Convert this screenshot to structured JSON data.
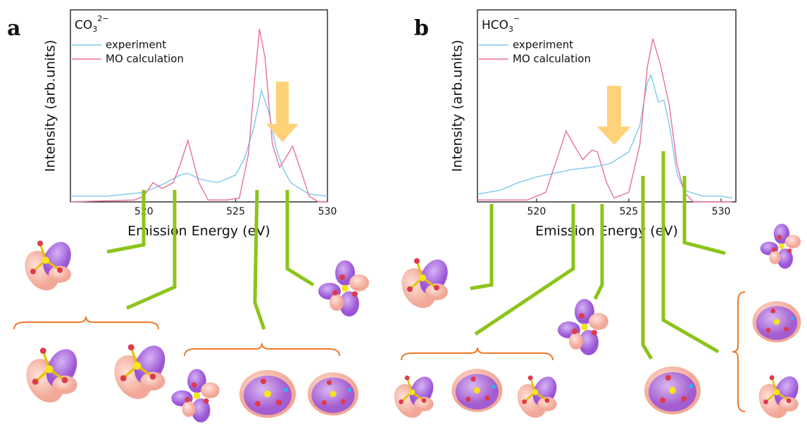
{
  "chart_data": [
    {
      "type": "line",
      "panel": "a",
      "formula": {
        "base": "CO",
        "sub": "3",
        "sup": "2−"
      },
      "x_label": "Emission Energy (eV)",
      "y_label": "Intensity (arb.units)",
      "xlim": [
        516,
        530
      ],
      "ylim": [
        0,
        1
      ],
      "xticks": [
        520,
        525,
        530
      ],
      "grid": false,
      "legend": "upper left",
      "series": [
        {
          "name": "experiment",
          "color": "#7ec8ec",
          "x": [
            516,
            518,
            520,
            521,
            522,
            522.4,
            523,
            524,
            525,
            525.5,
            526,
            526.4,
            526.8,
            527.2,
            527.6,
            528,
            529,
            530
          ],
          "values": [
            0.03,
            0.03,
            0.05,
            0.09,
            0.14,
            0.15,
            0.12,
            0.1,
            0.14,
            0.23,
            0.39,
            0.58,
            0.47,
            0.28,
            0.17,
            0.1,
            0.04,
            0.03
          ]
        },
        {
          "name": "MO calculation",
          "color": "#e8709a",
          "x": [
            516,
            519.5,
            520,
            520.5,
            521,
            521.6,
            522,
            522.4,
            523,
            523.5,
            524.5,
            525.2,
            525.7,
            526,
            526.3,
            526.6,
            527,
            527.4,
            527.8,
            528.1,
            528.6,
            529,
            529.5,
            530
          ],
          "values": [
            0,
            0.01,
            0.03,
            0.1,
            0.07,
            0.1,
            0.2,
            0.32,
            0.1,
            0.01,
            0.01,
            0.02,
            0.25,
            0.6,
            0.9,
            0.75,
            0.3,
            0.18,
            0.24,
            0.29,
            0.15,
            0.03,
            0,
            0
          ]
        }
      ]
    },
    {
      "type": "line",
      "panel": "b",
      "formula": {
        "base": "HCO",
        "sub": "3",
        "sup": "−"
      },
      "x_label": "Emission Energy (eV)",
      "y_label": "Intensity (arb.units)",
      "xlim": [
        516.8,
        530.8
      ],
      "ylim": [
        0,
        1
      ],
      "xticks": [
        520,
        525,
        530
      ],
      "grid": false,
      "legend": "upper left",
      "series": [
        {
          "name": "experiment",
          "color": "#7ec8ec",
          "x": [
            516.8,
            518,
            519,
            520,
            521,
            522,
            523,
            524,
            525,
            525.6,
            526,
            526.2,
            526.6,
            526.9,
            527.2,
            527.6,
            528,
            529,
            530,
            530.6
          ],
          "values": [
            0.04,
            0.06,
            0.1,
            0.13,
            0.15,
            0.17,
            0.18,
            0.2,
            0.26,
            0.4,
            0.62,
            0.66,
            0.52,
            0.53,
            0.4,
            0.15,
            0.06,
            0.03,
            0.03,
            0.02
          ]
        },
        {
          "name": "MO calculation",
          "color": "#e8709a",
          "x": [
            516.8,
            519.5,
            520.5,
            521.2,
            521.6,
            522,
            522.5,
            523,
            523.3,
            523.8,
            524.2,
            525,
            525.6,
            526,
            526.3,
            526.7,
            527.2,
            527.6,
            528,
            528.5,
            530.6
          ],
          "values": [
            0.01,
            0.01,
            0.05,
            0.25,
            0.37,
            0.3,
            0.22,
            0.27,
            0.26,
            0.1,
            0.02,
            0.05,
            0.3,
            0.7,
            0.85,
            0.72,
            0.5,
            0.2,
            0.05,
            0,
            0
          ]
        }
      ]
    }
  ]
}
